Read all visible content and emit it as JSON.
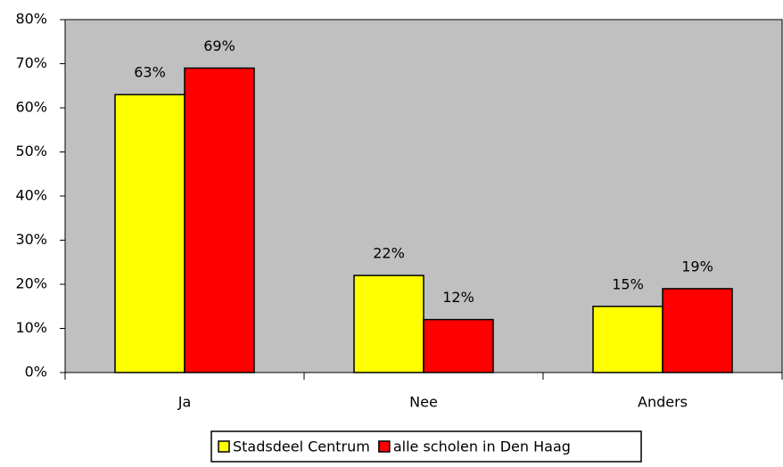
{
  "chart_data": {
    "type": "bar",
    "categories": [
      "Ja",
      "Nee",
      "Anders"
    ],
    "series": [
      {
        "name": "Stadsdeel Centrum",
        "color": "#ffff00",
        "values": [
          63,
          22,
          15
        ],
        "value_labels": [
          "63%",
          "22%",
          "15%"
        ]
      },
      {
        "name": "alle scholen in Den Haag",
        "color": "#ff0000",
        "values": [
          69,
          12,
          19
        ],
        "value_labels": [
          "69%",
          "12%",
          "19%"
        ]
      }
    ],
    "ylim": [
      0,
      80
    ],
    "yticks": [
      {
        "value": 0,
        "label": "0%"
      },
      {
        "value": 10,
        "label": "10%"
      },
      {
        "value": 20,
        "label": "20%"
      },
      {
        "value": 30,
        "label": "30%"
      },
      {
        "value": 40,
        "label": "40%"
      },
      {
        "value": 50,
        "label": "50%"
      },
      {
        "value": 60,
        "label": "60%"
      },
      {
        "value": 70,
        "label": "70%"
      },
      {
        "value": 80,
        "label": "80%"
      }
    ],
    "legend": "bottom",
    "plot_background": "#c0c0c0"
  }
}
